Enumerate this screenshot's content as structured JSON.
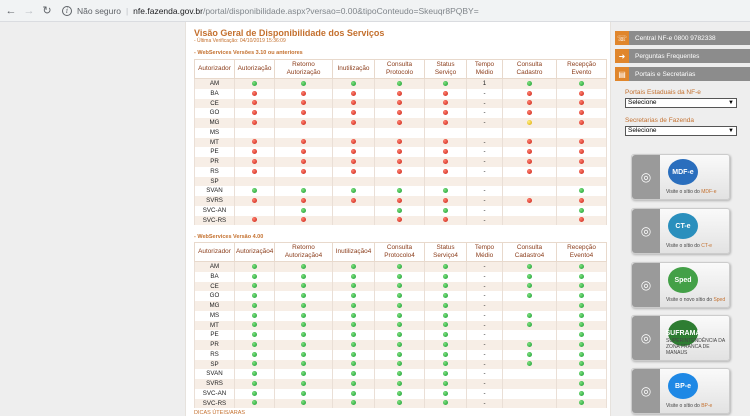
{
  "browser": {
    "insecure_label": "Não seguro",
    "url_host": "nfe.fazenda.gov.br",
    "url_path": "/portal/disponibilidade.aspx?versao=0.00&tipoConteudo=Skeuqr8PQBY="
  },
  "page": {
    "title": "Visão Geral de Disponibilidade dos Serviços",
    "last_check": "- Última Verificação: 04/10/2019 15:36:09",
    "section1": "- WebServices Versões 3.10 ou anteriores",
    "section2": "- WebServices Versão 4.00",
    "bottom_text": "DICAS ÚTEIS/ARAS"
  },
  "table1": {
    "headers": [
      "Autorizador",
      "Autorização",
      "Retorno Autorização",
      "Inutilização",
      "Consulta Protocolo",
      "Status Serviço",
      "Tempo Médio",
      "Consulta Cadastro",
      "Recepção Evento"
    ],
    "rows": [
      [
        "AM",
        "g",
        "g",
        "g",
        "g",
        "g",
        "1",
        "g",
        "g"
      ],
      [
        "BA",
        "r",
        "r",
        "r",
        "r",
        "r",
        "-",
        "r",
        "r"
      ],
      [
        "CE",
        "r",
        "r",
        "r",
        "r",
        "r",
        "-",
        "r",
        "r"
      ],
      [
        "GO",
        "r",
        "r",
        "r",
        "r",
        "r",
        "-",
        "r",
        "r"
      ],
      [
        "MG",
        "r",
        "r",
        "r",
        "r",
        "r",
        "-",
        "y",
        "r"
      ],
      [
        "MS",
        "",
        "",
        "",
        "",
        "",
        "",
        "",
        ""
      ],
      [
        "MT",
        "r",
        "r",
        "r",
        "r",
        "r",
        "-",
        "r",
        "r"
      ],
      [
        "PE",
        "r",
        "r",
        "r",
        "r",
        "r",
        "-",
        "r",
        "r"
      ],
      [
        "PR",
        "r",
        "r",
        "r",
        "r",
        "r",
        "-",
        "r",
        "r"
      ],
      [
        "RS",
        "r",
        "r",
        "r",
        "r",
        "r",
        "-",
        "r",
        "r"
      ],
      [
        "SP",
        "",
        "",
        "",
        "",
        "",
        "",
        "",
        ""
      ],
      [
        "SVAN",
        "g",
        "g",
        "g",
        "g",
        "g",
        "-",
        "",
        "g"
      ],
      [
        "SVRS",
        "r",
        "r",
        "r",
        "r",
        "r",
        "-",
        "r",
        "r"
      ],
      [
        "SVC-AN",
        "",
        "g",
        "",
        "g",
        "g",
        "-",
        "",
        "g"
      ],
      [
        "SVC-RS",
        "r",
        "r",
        "",
        "r",
        "r",
        "-",
        "",
        "r"
      ]
    ]
  },
  "table2": {
    "headers": [
      "Autorizador",
      "Autorização4",
      "Retorno Autorização4",
      "Inutilização4",
      "Consulta Protocolo4",
      "Status Serviço4",
      "Tempo Médio",
      "Consulta Cadastro4",
      "Recepção Evento4"
    ],
    "rows": [
      [
        "AM",
        "g",
        "g",
        "g",
        "g",
        "g",
        "-",
        "g",
        "g"
      ],
      [
        "BA",
        "g",
        "g",
        "g",
        "g",
        "g",
        "-",
        "g",
        "g"
      ],
      [
        "CE",
        "g",
        "g",
        "g",
        "g",
        "g",
        "-",
        "g",
        "g"
      ],
      [
        "GO",
        "g",
        "g",
        "g",
        "g",
        "g",
        "-",
        "g",
        "g"
      ],
      [
        "MG",
        "g",
        "g",
        "g",
        "g",
        "g",
        "-",
        "",
        "g"
      ],
      [
        "MS",
        "g",
        "g",
        "g",
        "g",
        "g",
        "-",
        "g",
        "g"
      ],
      [
        "MT",
        "g",
        "g",
        "g",
        "g",
        "g",
        "-",
        "g",
        "g"
      ],
      [
        "PE",
        "g",
        "g",
        "g",
        "g",
        "g",
        "-",
        "",
        "g"
      ],
      [
        "PR",
        "g",
        "g",
        "g",
        "g",
        "g",
        "-",
        "g",
        "g"
      ],
      [
        "RS",
        "g",
        "g",
        "g",
        "g",
        "g",
        "-",
        "g",
        "g"
      ],
      [
        "SP",
        "g",
        "g",
        "g",
        "g",
        "g",
        "-",
        "g",
        "g"
      ],
      [
        "SVAN",
        "g",
        "g",
        "g",
        "g",
        "g",
        "-",
        "",
        "g"
      ],
      [
        "SVRS",
        "g",
        "g",
        "g",
        "g",
        "g",
        "-",
        "",
        "g"
      ],
      [
        "SVC-AN",
        "g",
        "g",
        "g",
        "g",
        "g",
        "-",
        "",
        "g"
      ],
      [
        "SVC-RS",
        "g",
        "g",
        "g",
        "g",
        "g",
        "-",
        "",
        "g"
      ]
    ]
  },
  "sidebar": {
    "menu": [
      {
        "label": "Central NF-e 0800 9782338",
        "icon": "phone-icon"
      },
      {
        "label": "Perguntas Frequentes",
        "icon": "arrow-icon"
      },
      {
        "label": "Portais e Secretarias",
        "icon": "portal-icon"
      }
    ],
    "portais_label": "Portais Estaduais da NF-e",
    "portais_value": "Selecione",
    "secretarias_label": "Secretarias de Fazenda",
    "secretarias_value": "Selecione",
    "banners": [
      {
        "logo": "MDF-e",
        "caption": "Visite o sítio do ",
        "highlight": "MDF-e",
        "color": "#2a6ebd"
      },
      {
        "logo": "CT-e",
        "caption": "Visite o sítio do ",
        "highlight": "CT-e",
        "color": "#2a8fbd"
      },
      {
        "logo": "Sped",
        "caption": "Visite o novo sítio do ",
        "highlight": "Sped",
        "color": "#43a047"
      },
      {
        "logo": "SUFRAMA",
        "caption": "SUPERINTENDÊNCIA DA ZONA FRANCA DE MANAUS",
        "highlight": "",
        "color": "#2e7d32"
      },
      {
        "logo": "BP-e",
        "caption": "Visite o sítio do ",
        "highlight": "BP-e",
        "color": "#1e88e5"
      }
    ]
  }
}
